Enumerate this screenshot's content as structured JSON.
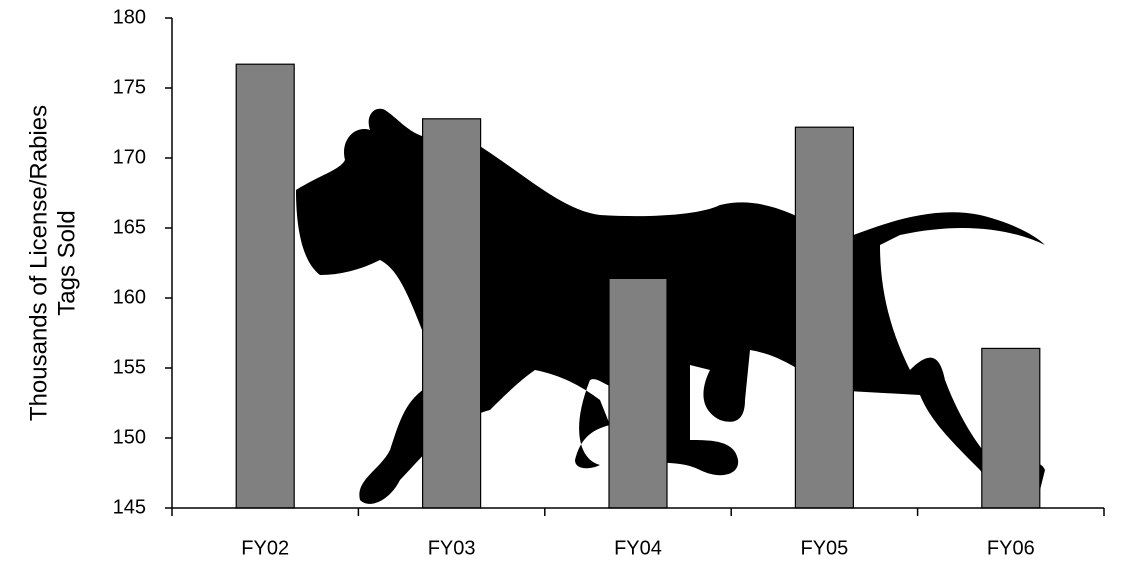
{
  "chart_data": {
    "type": "bar",
    "y_label": [
      "Thousands of License/Rabies",
      "Tags Sold"
    ],
    "categories": [
      "FY02",
      "FY03",
      "FY04",
      "FY05",
      "FY06"
    ],
    "values": [
      176.7,
      172.8,
      161.4,
      172.2,
      156.4
    ],
    "color": "#808080",
    "ylim": [
      145,
      180
    ],
    "yticks": [
      145,
      150,
      155,
      160,
      165,
      170,
      175,
      180
    ],
    "grid": false
  }
}
